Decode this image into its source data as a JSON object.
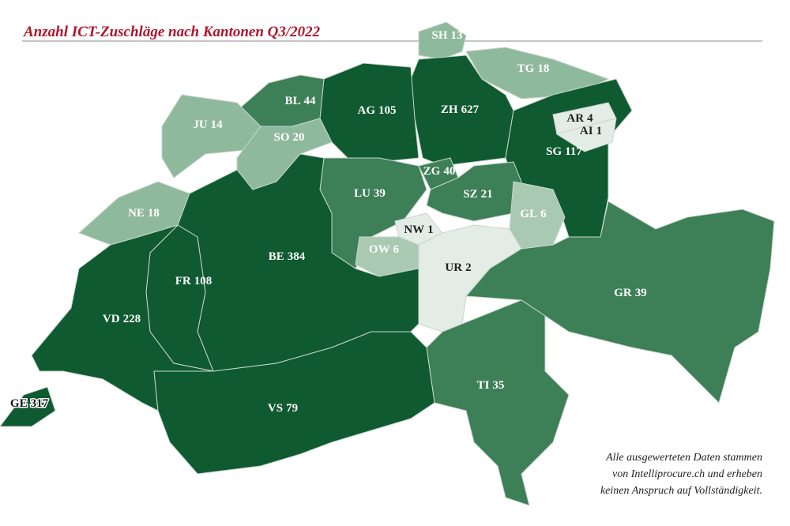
{
  "title": "Anzahl ICT-Zuschläge nach Kantonen Q3/2022",
  "note": [
    "Alle ausgewerteten Daten stammen",
    "von Intelliprocure.ch und erheben",
    "keinen Anspruch auf Vollständigkeit."
  ],
  "cantons": [
    {
      "code": "SH",
      "value": 13,
      "color": "#8fb99c"
    },
    {
      "code": "TG",
      "value": 18,
      "color": "#8fb99c"
    },
    {
      "code": "ZH",
      "value": 627,
      "color": "#0f5a31"
    },
    {
      "code": "AG",
      "value": 105,
      "color": "#0f5a31"
    },
    {
      "code": "BL",
      "value": 44,
      "color": "#3d7f57"
    },
    {
      "code": "JU",
      "value": 14,
      "color": "#8fb99c"
    },
    {
      "code": "SO",
      "value": 20,
      "color": "#8fb99c"
    },
    {
      "code": "NE",
      "value": 18,
      "color": "#8fb99c"
    },
    {
      "code": "SG",
      "value": 117,
      "color": "#0f5a31"
    },
    {
      "code": "AR",
      "value": 4,
      "color": "#e3ece5"
    },
    {
      "code": "AI",
      "value": 1,
      "color": "#e3ece5"
    },
    {
      "code": "LU",
      "value": 39,
      "color": "#3d7f57"
    },
    {
      "code": "ZG",
      "value": 40,
      "color": "#3d7f57"
    },
    {
      "code": "SZ",
      "value": 21,
      "color": "#3d7f57"
    },
    {
      "code": "GL",
      "value": 6,
      "color": "#a9c9b2"
    },
    {
      "code": "NW",
      "value": 1,
      "color": "#e3ece5"
    },
    {
      "code": "OW",
      "value": 6,
      "color": "#a9c9b2"
    },
    {
      "code": "UR",
      "value": 2,
      "color": "#e3ece5"
    },
    {
      "code": "GR",
      "value": 39,
      "color": "#3d7f57"
    },
    {
      "code": "TI",
      "value": 35,
      "color": "#3d7f57"
    },
    {
      "code": "BE",
      "value": 384,
      "color": "#0f5a31"
    },
    {
      "code": "FR",
      "value": 108,
      "color": "#0f5a31"
    },
    {
      "code": "VD",
      "value": 228,
      "color": "#0f5a31"
    },
    {
      "code": "VS",
      "value": 79,
      "color": "#0f5a31"
    },
    {
      "code": "GE",
      "value": 317,
      "color": "#0f5a31"
    }
  ]
}
